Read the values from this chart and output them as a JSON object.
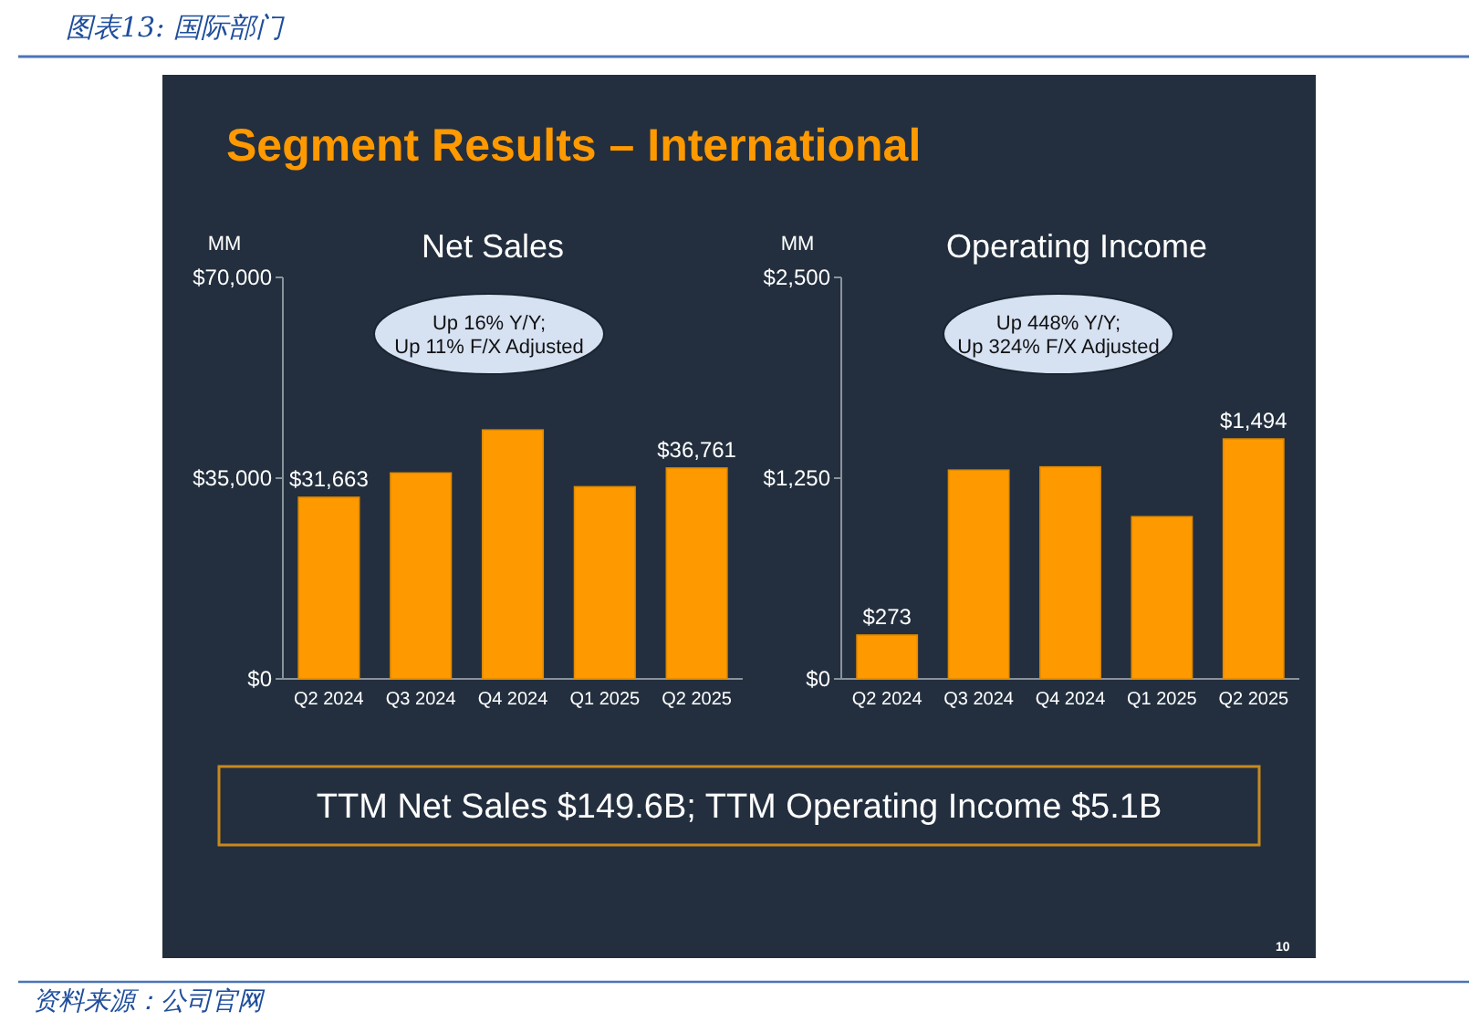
{
  "chart_data": [
    {
      "type": "other",
      "title": "图表13: 国际部门",
      "subtitle": "Segment Results – International",
      "annotations": [
        "TTM Net Sales $149.6B; TTM Operating Income $5.1B",
        "10",
        "资料来源：公司官网"
      ]
    },
    {
      "type": "bar",
      "title": "Net Sales",
      "ylabel": "MM",
      "categories": [
        "Q2 2024",
        "Q3 2024",
        "Q4 2024",
        "Q1 2025",
        "Q2 2025"
      ],
      "color": "#ff9900",
      "values": [
        31663,
        35900,
        43400,
        33500,
        36761
      ],
      "value_labels": [
        "$31,663",
        null,
        null,
        null,
        "$36,761"
      ],
      "ylim": [
        0,
        70000
      ],
      "yticks": [
        {
          "value": 0,
          "label": "$0"
        },
        {
          "value": 35000,
          "label": "$35,000"
        },
        {
          "value": 70000,
          "label": "$70,000"
        }
      ],
      "annotations": [
        "Up 16% Y/Y;\nUp 11% F/X Adjusted"
      ]
    },
    {
      "type": "bar",
      "title": "Operating Income",
      "ylabel": "MM",
      "categories": [
        "Q2 2024",
        "Q3 2024",
        "Q4 2024",
        "Q1 2025",
        "Q2 2025"
      ],
      "color": "#ff9900",
      "values": [
        273,
        1300,
        1320,
        1010,
        1494
      ],
      "value_labels": [
        "$273",
        null,
        null,
        null,
        "$1,494"
      ],
      "ylim": [
        0,
        2500
      ],
      "yticks": [
        {
          "value": 0,
          "label": "$0"
        },
        {
          "value": 1250,
          "label": "$1,250"
        },
        {
          "value": 2500,
          "label": "$2,500"
        }
      ],
      "annotations": [
        "Up 448% Y/Y;\nUp 324% F/X Adjusted"
      ]
    }
  ]
}
